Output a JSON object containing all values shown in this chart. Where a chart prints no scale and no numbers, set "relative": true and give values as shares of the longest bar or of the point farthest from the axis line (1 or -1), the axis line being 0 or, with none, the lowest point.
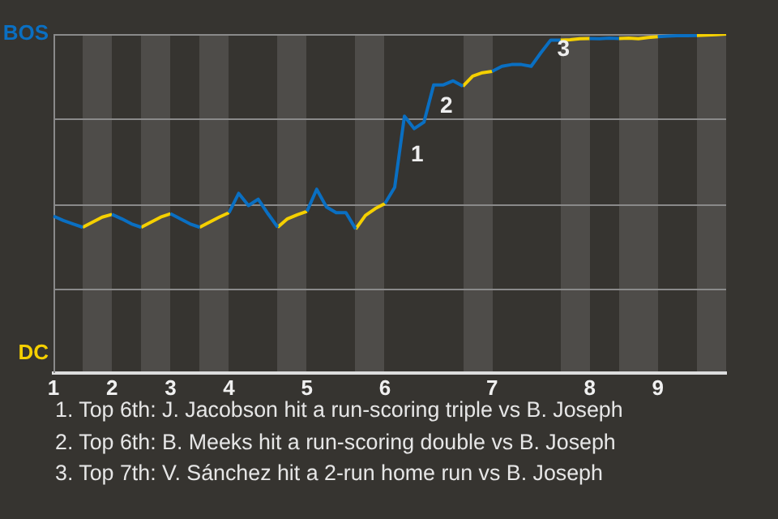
{
  "chart_data": {
    "type": "line",
    "relative": true,
    "categories": [
      "1",
      null,
      null,
      null,
      null,
      null,
      "2",
      null,
      null,
      null,
      null,
      null,
      "3",
      null,
      null,
      null,
      null,
      null,
      "4",
      null,
      null,
      null,
      null,
      null,
      null,
      null,
      "5",
      null,
      null,
      null,
      null,
      null,
      null,
      null,
      "6",
      null,
      null,
      null,
      null,
      null,
      null,
      null,
      null,
      null,
      null,
      "7",
      null,
      null,
      null,
      null,
      null,
      null,
      null,
      null,
      null,
      "8",
      null,
      null,
      null,
      null,
      null,
      null,
      "9",
      null,
      null,
      null,
      null,
      null,
      null,
      null
    ],
    "series": [
      {
        "name": "BOS",
        "color": "#0a6fc2",
        "values": [
          0.463,
          0.45,
          0.44,
          0.43,
          null,
          null,
          0.468,
          0.455,
          0.44,
          0.43,
          null,
          null,
          0.47,
          0.455,
          0.44,
          0.43,
          null,
          null,
          0.473,
          0.53,
          0.494,
          0.513,
          0.47,
          0.43,
          null,
          null,
          0.477,
          0.542,
          0.49,
          0.473,
          0.473,
          0.425,
          null,
          null,
          0.5,
          0.548,
          0.758,
          0.721,
          0.74,
          0.85,
          0.85,
          0.862,
          0.846,
          null,
          null,
          0.89,
          0.905,
          0.91,
          0.91,
          0.905,
          0.945,
          0.982,
          0.982,
          null,
          null,
          0.987,
          0.986,
          0.988,
          0.987,
          null,
          null,
          null,
          0.992,
          0.994,
          0.995,
          0.995,
          0.996,
          null,
          null,
          null
        ]
      },
      {
        "name": "DC",
        "color": "#f5d000",
        "values": [
          null,
          null,
          null,
          0.43,
          0.445,
          0.46,
          0.468,
          null,
          null,
          0.43,
          0.445,
          0.46,
          0.47,
          null,
          null,
          0.43,
          0.445,
          0.46,
          0.473,
          null,
          null,
          null,
          null,
          0.43,
          0.455,
          0.467,
          0.477,
          null,
          null,
          null,
          null,
          0.425,
          0.465,
          0.485,
          0.5,
          null,
          null,
          null,
          null,
          null,
          null,
          null,
          0.846,
          0.876,
          0.886,
          0.89,
          null,
          null,
          null,
          null,
          null,
          null,
          0.982,
          0.983,
          0.986,
          0.987,
          null,
          null,
          0.987,
          0.988,
          0.986,
          0.99,
          0.992,
          null,
          null,
          null,
          0.996,
          0.997,
          0.998,
          1
        ]
      }
    ],
    "grid": "y",
    "marker": "none",
    "annotations": [
      {
        "text": "1",
        "y": 0.758
      },
      {
        "text": "2",
        "y": 0.85
      },
      {
        "text": "3",
        "y": 0.982
      },
      "1. Top 6th: J. Jacobson hit a run-scoring triple vs B. Joseph",
      "2. Top 6th: B. Meeks hit a run-scoring double vs B. Joseph",
      "3. Top 7th: V. Sánchez hit a 2-run home run vs B. Joseph"
    ]
  }
}
